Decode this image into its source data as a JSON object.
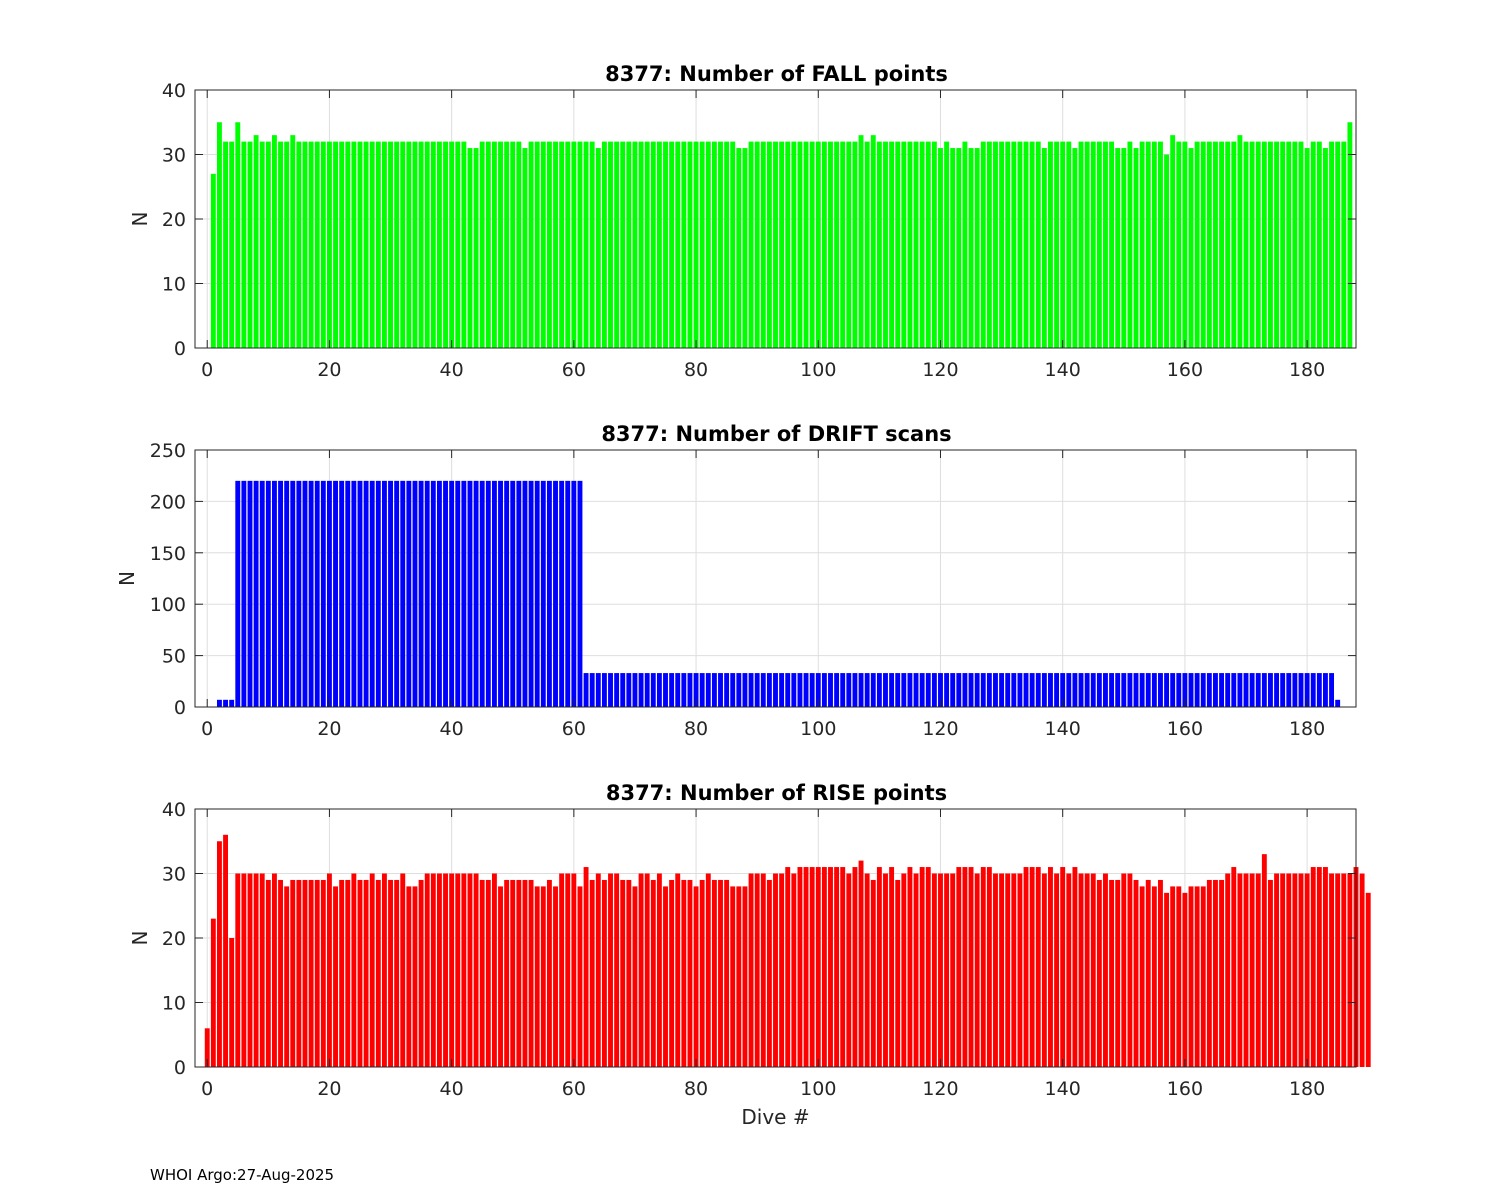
{
  "footer": "WHOI Argo:27-Aug-2025",
  "chart_data": [
    {
      "type": "bar",
      "title": "8377: Number of FALL points",
      "xlabel": "",
      "ylabel": "N",
      "color": "#00ff00",
      "xlim": [
        -2,
        188
      ],
      "ylim": [
        0,
        40
      ],
      "xticks": [
        0,
        20,
        40,
        60,
        80,
        100,
        120,
        140,
        160,
        180
      ],
      "yticks": [
        0,
        10,
        20,
        30,
        40
      ],
      "x_start": 1,
      "values": [
        27,
        35,
        32,
        32,
        35,
        32,
        32,
        33,
        32,
        32,
        33,
        32,
        32,
        33,
        32,
        32,
        32,
        32,
        32,
        32,
        32,
        32,
        32,
        32,
        32,
        32,
        32,
        32,
        32,
        32,
        32,
        32,
        32,
        32,
        32,
        32,
        32,
        32,
        32,
        32,
        32,
        32,
        31,
        31,
        32,
        32,
        32,
        32,
        32,
        32,
        32,
        31,
        32,
        32,
        32,
        32,
        32,
        32,
        32,
        32,
        32,
        32,
        32,
        31,
        32,
        32,
        32,
        32,
        32,
        32,
        32,
        32,
        32,
        32,
        32,
        32,
        32,
        32,
        32,
        32,
        32,
        32,
        32,
        32,
        32,
        32,
        31,
        31,
        32,
        32,
        32,
        32,
        32,
        32,
        32,
        32,
        32,
        32,
        32,
        32,
        32,
        32,
        32,
        32,
        32,
        32,
        33,
        32,
        33,
        32,
        32,
        32,
        32,
        32,
        32,
        32,
        32,
        32,
        32,
        31,
        32,
        31,
        31,
        32,
        31,
        31,
        32,
        32,
        32,
        32,
        32,
        32,
        32,
        32,
        32,
        32,
        31,
        32,
        32,
        32,
        32,
        31,
        32,
        32,
        32,
        32,
        32,
        32,
        31,
        31,
        32,
        31,
        32,
        32,
        32,
        32,
        30,
        33,
        32,
        32,
        31,
        32,
        32,
        32,
        32,
        32,
        32,
        32,
        33,
        32,
        32,
        32,
        32,
        32,
        32,
        32,
        32,
        32,
        32,
        31,
        32,
        32,
        31,
        32,
        32,
        32,
        35
      ]
    },
    {
      "type": "bar",
      "title": "8377: Number of DRIFT scans",
      "xlabel": "",
      "ylabel": "N",
      "color": "#0000ff",
      "xlim": [
        -2,
        188
      ],
      "ylim": [
        0,
        250
      ],
      "xticks": [
        0,
        20,
        40,
        60,
        80,
        100,
        120,
        140,
        160,
        180
      ],
      "yticks": [
        0,
        50,
        100,
        150,
        200,
        250
      ],
      "x_start": 1,
      "values": [
        0,
        7,
        7,
        7,
        220,
        220,
        220,
        220,
        220,
        220,
        220,
        220,
        220,
        220,
        220,
        220,
        220,
        220,
        220,
        220,
        220,
        220,
        220,
        220,
        220,
        220,
        220,
        220,
        220,
        220,
        220,
        220,
        220,
        220,
        220,
        220,
        220,
        220,
        220,
        220,
        220,
        220,
        220,
        220,
        220,
        220,
        220,
        220,
        220,
        220,
        220,
        220,
        220,
        220,
        220,
        220,
        220,
        220,
        220,
        220,
        220,
        33,
        33,
        33,
        33,
        33,
        33,
        33,
        33,
        33,
        33,
        33,
        33,
        33,
        33,
        33,
        33,
        33,
        33,
        33,
        33,
        33,
        33,
        33,
        33,
        33,
        33,
        33,
        33,
        33,
        33,
        33,
        33,
        33,
        33,
        33,
        33,
        33,
        33,
        33,
        33,
        33,
        33,
        33,
        33,
        33,
        33,
        33,
        33,
        33,
        33,
        33,
        33,
        33,
        33,
        33,
        33,
        33,
        33,
        33,
        33,
        33,
        33,
        33,
        33,
        33,
        33,
        33,
        33,
        33,
        33,
        33,
        33,
        33,
        33,
        33,
        33,
        33,
        33,
        33,
        33,
        33,
        33,
        33,
        33,
        33,
        33,
        33,
        33,
        33,
        33,
        33,
        33,
        33,
        33,
        33,
        33,
        33,
        33,
        33,
        33,
        33,
        33,
        33,
        33,
        33,
        33,
        33,
        33,
        33,
        33,
        33,
        33,
        33,
        33,
        33,
        33,
        33,
        33,
        33,
        33,
        33,
        33,
        33,
        7
      ]
    },
    {
      "type": "bar",
      "title": "8377: Number of RISE points",
      "xlabel": "Dive #",
      "ylabel": "N",
      "color": "#ff0000",
      "xlim": [
        -2,
        188
      ],
      "ylim": [
        0,
        40
      ],
      "xticks": [
        0,
        20,
        40,
        60,
        80,
        100,
        120,
        140,
        160,
        180
      ],
      "yticks": [
        0,
        10,
        20,
        30,
        40
      ],
      "x_start": 0,
      "values": [
        6,
        23,
        35,
        36,
        20,
        30,
        30,
        30,
        30,
        30,
        29,
        30,
        29,
        28,
        29,
        29,
        29,
        29,
        29,
        29,
        30,
        28,
        29,
        29,
        30,
        29,
        29,
        30,
        29,
        30,
        29,
        29,
        30,
        28,
        28,
        29,
        30,
        30,
        30,
        30,
        30,
        30,
        30,
        30,
        30,
        29,
        29,
        30,
        28,
        29,
        29,
        29,
        29,
        29,
        28,
        28,
        29,
        28,
        30,
        30,
        30,
        28,
        31,
        29,
        30,
        29,
        30,
        30,
        29,
        29,
        28,
        30,
        30,
        29,
        30,
        28,
        29,
        30,
        29,
        29,
        28,
        29,
        30,
        29,
        29,
        29,
        28,
        28,
        28,
        30,
        30,
        30,
        29,
        30,
        30,
        31,
        30,
        31,
        31,
        31,
        31,
        31,
        31,
        31,
        31,
        30,
        31,
        32,
        30,
        29,
        31,
        30,
        31,
        29,
        30,
        31,
        30,
        31,
        31,
        30,
        30,
        30,
        30,
        31,
        31,
        31,
        30,
        31,
        31,
        30,
        30,
        30,
        30,
        30,
        31,
        31,
        31,
        30,
        31,
        30,
        31,
        30,
        31,
        30,
        30,
        30,
        29,
        30,
        29,
        29,
        30,
        30,
        29,
        28,
        29,
        28,
        29,
        27,
        28,
        28,
        27,
        28,
        28,
        28,
        29,
        29,
        29,
        30,
        31,
        30,
        30,
        30,
        30,
        33,
        29,
        30,
        30,
        30,
        30,
        30,
        30,
        31,
        31,
        31,
        30,
        30,
        30,
        30,
        31,
        30,
        27
      ]
    }
  ]
}
